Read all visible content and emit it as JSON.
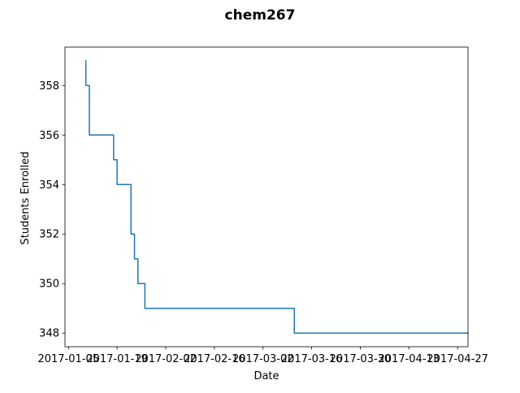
{
  "chart_data": {
    "type": "line",
    "title": "chem267",
    "xlabel": "Date",
    "ylabel": "Students Enrolled",
    "x_tick_labels": [
      "2017-01-05",
      "2017-01-19",
      "2017-02-02",
      "2017-02-16",
      "2017-03-02",
      "2017-03-16",
      "2017-03-30",
      "2017-04-13",
      "2017-04-27"
    ],
    "y_tick_labels": [
      "348",
      "350",
      "352",
      "354",
      "356",
      "358"
    ],
    "x_range": [
      "2017-01-04",
      "2017-04-30"
    ],
    "ylim": [
      347.45,
      359.55
    ],
    "grid": false,
    "line_color": "#1f77b4",
    "series": [
      {
        "x": [
          "2017-01-10",
          "2017-01-10",
          "2017-01-11",
          "2017-01-11",
          "2017-01-18",
          "2017-01-18",
          "2017-01-19",
          "2017-01-19",
          "2017-01-23",
          "2017-01-23",
          "2017-01-24",
          "2017-01-24",
          "2017-01-25",
          "2017-01-25",
          "2017-01-27",
          "2017-01-27",
          "2017-02-01",
          "2017-02-01",
          "2017-03-11",
          "2017-03-11",
          "2017-04-30"
        ],
        "y": [
          359,
          358,
          358,
          356,
          356,
          355,
          355,
          354,
          354,
          352,
          352,
          351,
          351,
          350,
          350,
          349,
          349,
          349,
          349,
          348,
          348
        ]
      }
    ]
  }
}
